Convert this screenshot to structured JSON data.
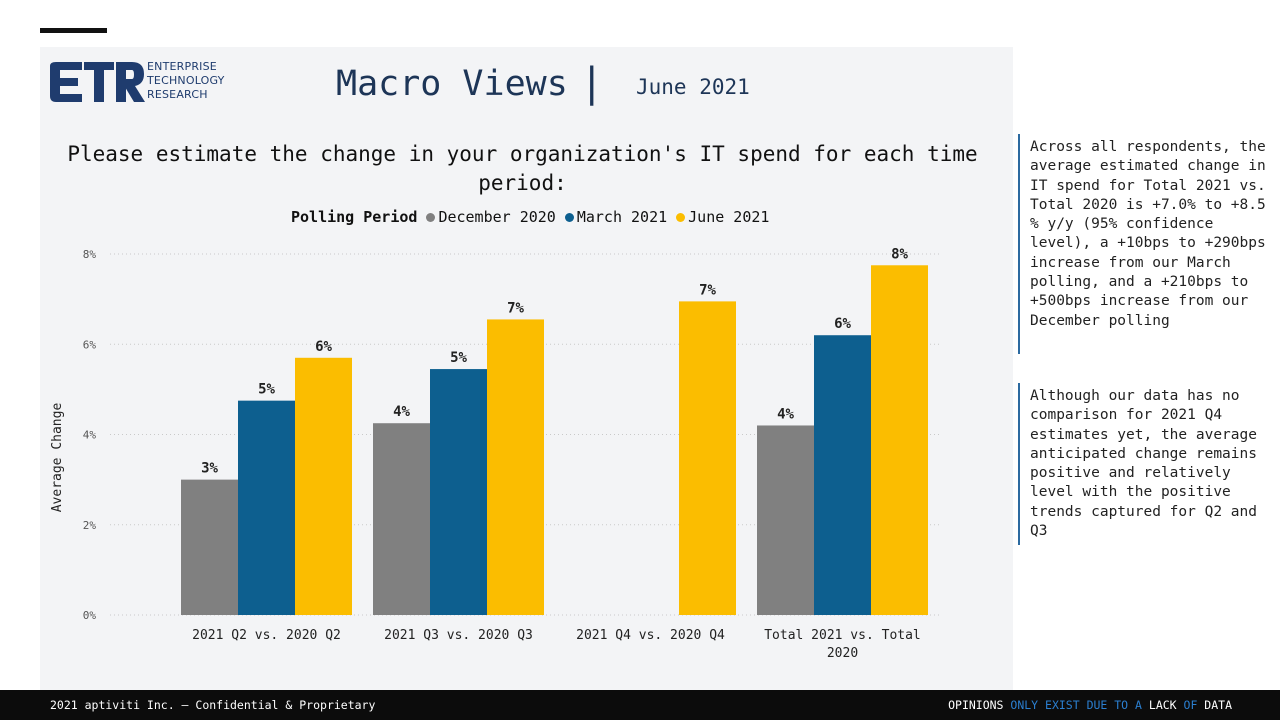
{
  "logo": {
    "mark": "ETR",
    "line1": "ENTERPRISE",
    "line2": "TECHNOLOGY",
    "line3": "RESEARCH"
  },
  "header": {
    "title": "Macro Views",
    "separator": "|",
    "date": "June 2021"
  },
  "question": "Please estimate the change in your organization's IT spend for each time period:",
  "legend": {
    "title": "Polling Period",
    "items": [
      {
        "label": "December 2020",
        "color": "#808080"
      },
      {
        "label": "March 2021",
        "color": "#0d5f8f"
      },
      {
        "label": "June 2021",
        "color": "#fbbd00"
      }
    ]
  },
  "chart_data": {
    "type": "bar",
    "title": "",
    "xlabel": "",
    "ylabel": "Average Change",
    "ylim": [
      0,
      8
    ],
    "yticks": [
      "0%",
      "2%",
      "4%",
      "6%",
      "8%"
    ],
    "grid": true,
    "legend_position": "top",
    "categories": [
      "2021 Q2 vs. 2020 Q2",
      "2021 Q3 vs. 2020 Q3",
      "2021 Q4 vs. 2020 Q4",
      "Total 2021 vs. Total 2020"
    ],
    "series": [
      {
        "name": "December 2020",
        "color": "#808080",
        "values": [
          3.0,
          4.25,
          null,
          4.2
        ],
        "labels": [
          "3%",
          "4%",
          "",
          "4%"
        ]
      },
      {
        "name": "March 2021",
        "color": "#0d5f8f",
        "values": [
          4.75,
          5.45,
          null,
          6.2
        ],
        "labels": [
          "5%",
          "5%",
          "",
          "6%"
        ]
      },
      {
        "name": "June 2021",
        "color": "#fbbd00",
        "values": [
          5.7,
          6.55,
          6.95,
          7.75
        ],
        "labels": [
          "6%",
          "7%",
          "7%",
          "8%"
        ]
      }
    ]
  },
  "sidebar": {
    "note1": "Across all respondents, the average estimated change in IT spend for Total 2021 vs. Total 2020 is +7.0% to +8.5 % y/y (95% confidence level), a +10bps to +290bps increase from our March polling, and a +210bps to +500bps increase from our December polling",
    "note2": "Although our data has no comparison for 2021 Q4 estimates yet, the average anticipated change remains positive and relatively level with the positive trends captured for Q2 and Q3"
  },
  "footer": {
    "left": "2021 aptiviti Inc. – Confidential & Proprietary",
    "right_parts": [
      {
        "text": "OPINIONS ",
        "highlight": false
      },
      {
        "text": "ONLY EXIST DUE TO A ",
        "highlight": true
      },
      {
        "text": "LACK ",
        "highlight": false
      },
      {
        "text": "OF ",
        "highlight": true
      },
      {
        "text": "DATA",
        "highlight": false
      }
    ]
  }
}
